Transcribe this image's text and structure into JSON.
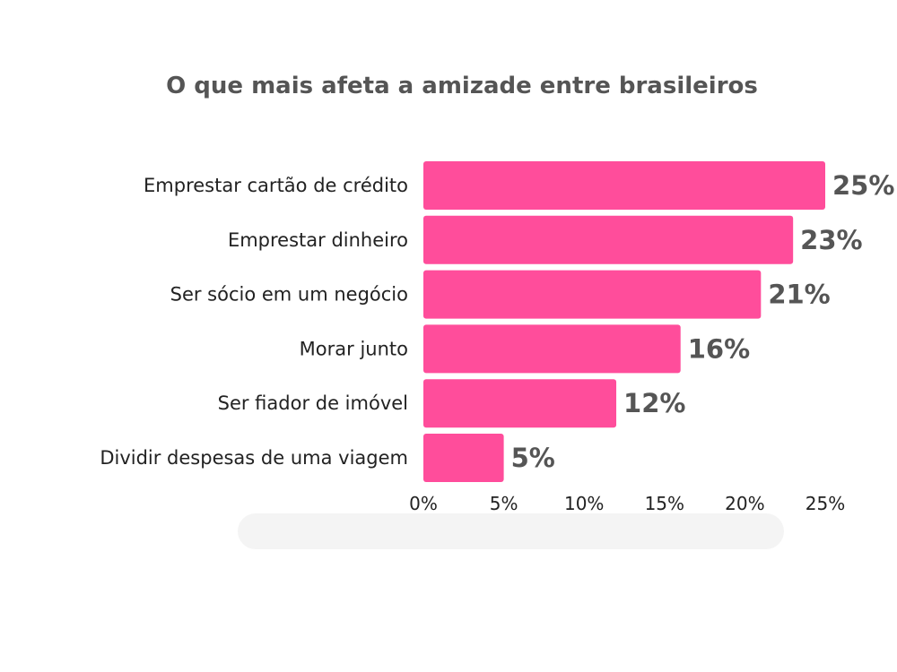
{
  "chart_data": {
    "type": "bar",
    "orientation": "horizontal",
    "title": "O que mais afeta a amizade entre brasileiros",
    "categories": [
      "Emprestar cartão de crédito",
      "Emprestar dinheiro",
      "Ser sócio em um negócio",
      "Morar junto",
      "Ser fiador de imóvel",
      "Dividir despesas de uma viagem"
    ],
    "values": [
      25,
      23,
      21,
      16,
      12,
      5
    ],
    "value_labels": [
      "25%",
      "23%",
      "21%",
      "16%",
      "12%",
      "5%"
    ],
    "x_ticks": [
      0,
      5,
      10,
      15,
      20,
      25
    ],
    "x_tick_labels": [
      "0%",
      "5%",
      "10%",
      "15%",
      "20%",
      "25%"
    ],
    "xlim": [
      0,
      25
    ],
    "bar_color": "#ff4d9b",
    "grid": false,
    "legend": "none"
  }
}
